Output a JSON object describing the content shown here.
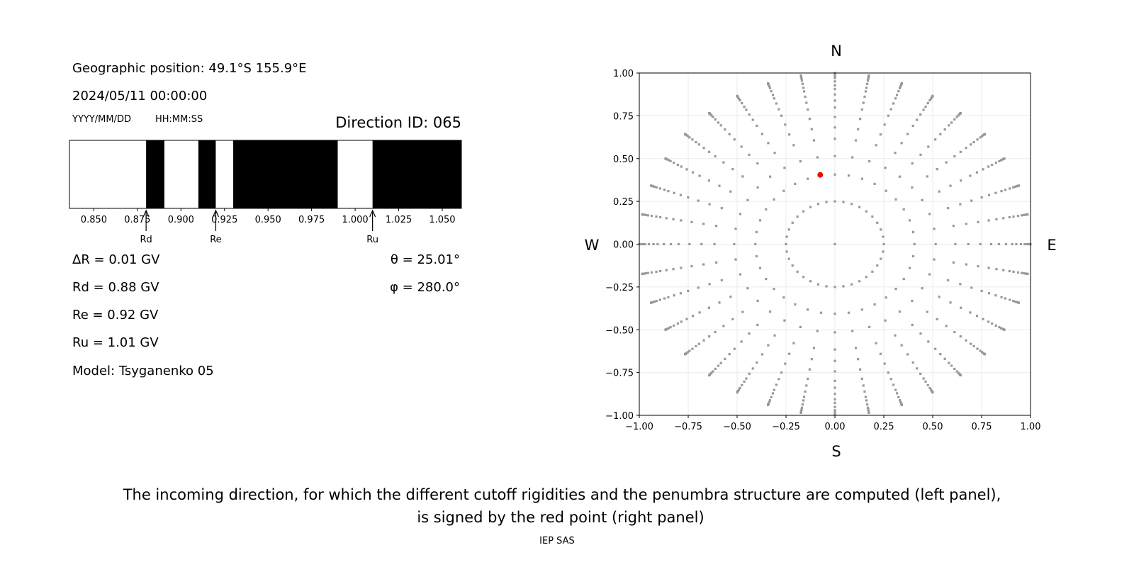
{
  "info": {
    "geo_position": "Geographic position: 49.1°S 155.9°E",
    "datetime": "2024/05/11 00:00:00",
    "date_format": "YYYY/MM/DD",
    "time_format": "HH:MM:SS",
    "direction_id": "Direction ID: 065",
    "delta_r": "ΔR = 0.01 GV",
    "rd": "Rd = 0.88 GV",
    "re": "Re = 0.92 GV",
    "ru": "Ru = 1.01 GV",
    "model": "Model: Tsyganenko 05",
    "theta": "θ = 25.01°",
    "phi": "φ = 280.0°"
  },
  "caption": {
    "line1": "The incoming direction, for which the different cutoff rigidities and the penumbra structure are computed (left panel),",
    "line2": "is signed by the red point (right panel)",
    "footer": "IEP SAS"
  },
  "chart_data": [
    {
      "type": "penumbra-bar",
      "xlim": [
        0.836,
        1.061
      ],
      "xticks": [
        0.85,
        0.875,
        0.9,
        0.925,
        0.95,
        0.975,
        1.0,
        1.025,
        1.05
      ],
      "xtick_labels": [
        "0.850",
        "0.875",
        "0.900",
        "0.925",
        "0.950",
        "0.975",
        "1.000",
        "1.025",
        "1.050"
      ],
      "segments": [
        {
          "from": 0.836,
          "to": 0.88,
          "state": "allowed",
          "color": "#ffffff"
        },
        {
          "from": 0.88,
          "to": 0.8905,
          "state": "forbidden",
          "color": "#000000"
        },
        {
          "from": 0.8905,
          "to": 0.91,
          "state": "allowed",
          "color": "#ffffff"
        },
        {
          "from": 0.91,
          "to": 0.92,
          "state": "forbidden",
          "color": "#000000"
        },
        {
          "from": 0.92,
          "to": 0.93,
          "state": "allowed",
          "color": "#ffffff"
        },
        {
          "from": 0.93,
          "to": 0.99,
          "state": "forbidden",
          "color": "#000000"
        },
        {
          "from": 0.99,
          "to": 1.01,
          "state": "allowed",
          "color": "#ffffff"
        },
        {
          "from": 1.01,
          "to": 1.061,
          "state": "forbidden",
          "color": "#000000"
        }
      ],
      "annotations": [
        {
          "label": "Rd",
          "x": 0.88
        },
        {
          "label": "Re",
          "x": 0.92
        },
        {
          "label": "Ru",
          "x": 1.01
        }
      ]
    },
    {
      "type": "scatter",
      "xlim": [
        -1,
        1
      ],
      "ylim": [
        -1,
        1
      ],
      "grid": true,
      "ticks": [
        -1.0,
        -0.75,
        -0.5,
        -0.25,
        0.0,
        0.25,
        0.5,
        0.75,
        1.0
      ],
      "tick_labels": [
        "−1.00",
        "−0.75",
        "−0.50",
        "−0.25",
        "0.00",
        "0.25",
        "0.50",
        "0.75",
        "1.00"
      ],
      "compass": {
        "north": "N",
        "south": "S",
        "west": "W",
        "east": "E"
      },
      "grid_pattern": {
        "azimuth_step_deg": 10,
        "inner_ring_radius": 0.25,
        "radial_zenith_deg": [
          24,
          31,
          38,
          43,
          48,
          53,
          57,
          61,
          65,
          68,
          72,
          76,
          79,
          82,
          85,
          88,
          90
        ],
        "center_point": true,
        "color": "#999999"
      },
      "selected_point": {
        "x": -0.075,
        "y": 0.405,
        "color": "#ff0000"
      }
    }
  ]
}
